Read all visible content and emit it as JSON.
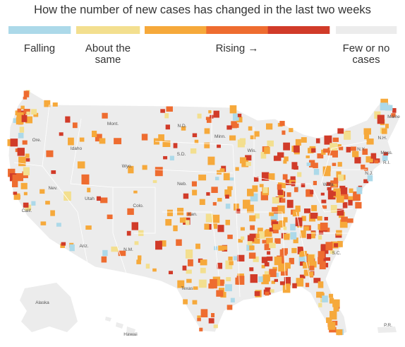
{
  "legend": {
    "title": "How the number of new cases has changed in the last two weeks",
    "items": [
      {
        "label": [
          "Falling"
        ],
        "colors": [
          "#acd9e9"
        ]
      },
      {
        "label": [
          "About the",
          "same"
        ],
        "colors": [
          "#f3df8f"
        ]
      },
      {
        "label": [
          "Rising →"
        ],
        "colors": [
          "#f6a93b",
          "#ee6c30",
          "#d13b29"
        ]
      },
      {
        "label": [
          "Few or no",
          "cases"
        ],
        "colors": [
          "#ececec"
        ]
      }
    ]
  },
  "map_labels": [
    "Mont.",
    "N.D.",
    "Minn.",
    "Maine",
    "Ore.",
    "Idaho",
    "Wyo.",
    "S.D.",
    "Wis.",
    "N.Y.",
    "N.H.",
    "Mass.",
    "R.I.",
    "N.J.",
    "Nev.",
    "Neb.",
    "Calif.",
    "Utah",
    "Colo.",
    "Kan.",
    "W.Va.",
    "Ariz.",
    "N.M.",
    "Texas",
    "S.C.",
    "Alaska",
    "Hawaii",
    "P.R."
  ]
}
